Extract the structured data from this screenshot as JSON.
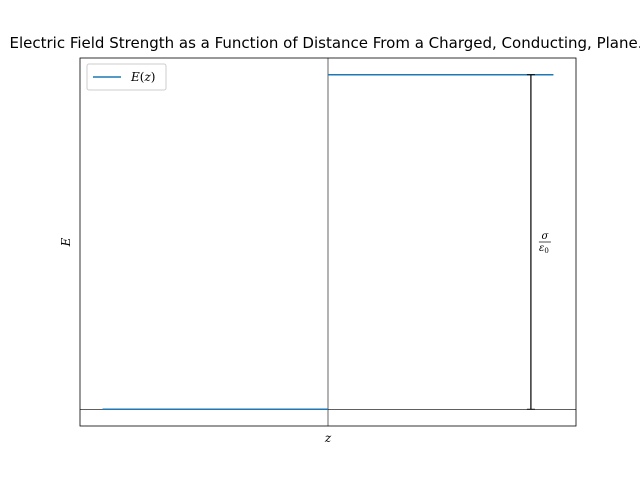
{
  "chart_data": {
    "type": "line",
    "title": "Electric Field Strength as a Function of Distance From a Charged, Conducting, Plane.",
    "xlabel": "z",
    "ylabel": "E",
    "xlim": [
      -1.1,
      1.1
    ],
    "ylim": [
      -0.05,
      1.05
    ],
    "grid": false,
    "legend": {
      "placement": "top-left"
    },
    "series": [
      {
        "name": "E(z)",
        "name_func": "E",
        "name_var": "z",
        "color": "#1f77b4",
        "segments": [
          {
            "x": [
              -1.0,
              0.0
            ],
            "y": [
              0.0,
              0.0
            ]
          },
          {
            "x": [
              0.0,
              1.0
            ],
            "y": [
              1.0,
              1.0
            ]
          }
        ]
      }
    ],
    "reference_lines": {
      "vertical_x": 0.0,
      "horizontal_y": 0.0,
      "color": "#000000"
    },
    "annotation": {
      "x": 0.9,
      "y_from": 0.0,
      "y_to": 1.0,
      "numerator": "σ",
      "denominator": "ε",
      "denominator_sub": "0"
    }
  }
}
